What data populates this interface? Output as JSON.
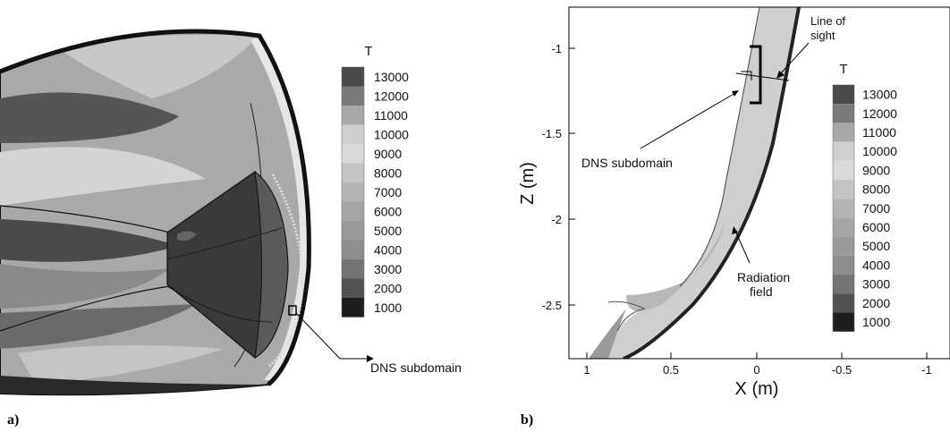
{
  "panel_a": {
    "label": "a)",
    "legend": {
      "title": "T",
      "levels": [
        "13000",
        "12000",
        "11000",
        "10000",
        "9000",
        "8000",
        "7000",
        "6000",
        "5000",
        "4000",
        "3000",
        "2000",
        "1000"
      ],
      "colors": [
        "#4a4a4a",
        "#7a7a7a",
        "#a8a8a8",
        "#cfcfcf",
        "#dadada",
        "#c4c4c4",
        "#b4b4b4",
        "#a6a6a6",
        "#9a9a9a",
        "#8e8e8e",
        "#747474",
        "#525252",
        "#1e1e1e"
      ]
    },
    "annotation": "DNS subdomain"
  },
  "panel_b": {
    "label": "b)",
    "legend": {
      "title": "T",
      "levels": [
        "13000",
        "12000",
        "11000",
        "10000",
        "9000",
        "8000",
        "7000",
        "6000",
        "5000",
        "4000",
        "3000",
        "2000",
        "1000"
      ],
      "colors": [
        "#4a4a4a",
        "#7a7a7a",
        "#a8a8a8",
        "#cfcfcf",
        "#dadada",
        "#c4c4c4",
        "#b4b4b4",
        "#a6a6a6",
        "#9a9a9a",
        "#8e8e8e",
        "#747474",
        "#525252",
        "#1e1e1e"
      ]
    },
    "xlabel": "X (m)",
    "ylabel": "Z (m)",
    "xticks": [
      "1",
      "0.5",
      "0",
      "-0.5",
      "-1"
    ],
    "yticks": [
      "-1",
      "-1.5",
      "-2",
      "-2.5"
    ],
    "annotations": {
      "line_of_sight": [
        "Line of",
        "sight"
      ],
      "dns_subdomain": "DNS subdomain",
      "radiation_field": [
        "Radiation",
        "field"
      ]
    }
  }
}
